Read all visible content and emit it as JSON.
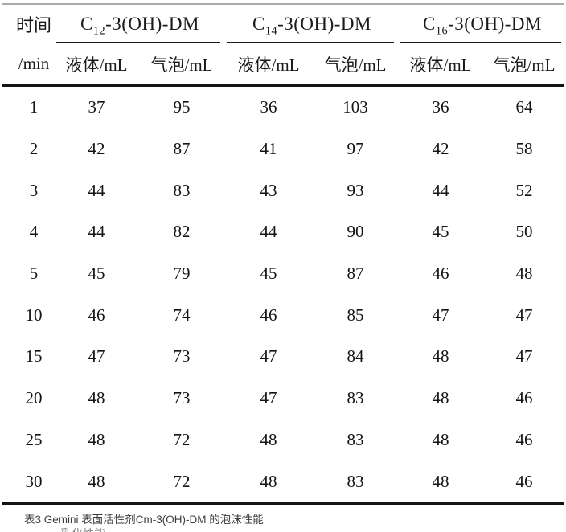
{
  "page": {
    "caption": "表3 Gemini 表面活性剂Cm-3(OH)-DM 的泡沫性能",
    "clipped_next_line": "乳化性能"
  },
  "table": {
    "time_header_line1": "时间",
    "time_header_line2": "/min",
    "groups": [
      {
        "prefix": "C",
        "sub": "12",
        "suffix": "-3(OH)-DM",
        "subcols": [
          "液体/mL",
          "气泡/mL"
        ]
      },
      {
        "prefix": "C",
        "sub": "14",
        "suffix": "-3(OH)-DM",
        "subcols": [
          "液体/mL",
          "气泡/mL"
        ]
      },
      {
        "prefix": "C",
        "sub": "16",
        "suffix": "-3(OH)-DM",
        "subcols": [
          "液体/mL",
          "气泡/mL"
        ]
      }
    ],
    "rows": [
      {
        "time": "1",
        "values": [
          "37",
          "95",
          "36",
          "103",
          "36",
          "64"
        ]
      },
      {
        "time": "2",
        "values": [
          "42",
          "87",
          "41",
          "97",
          "42",
          "58"
        ]
      },
      {
        "time": "3",
        "values": [
          "44",
          "83",
          "43",
          "93",
          "44",
          "52"
        ]
      },
      {
        "time": "4",
        "values": [
          "44",
          "82",
          "44",
          "90",
          "45",
          "50"
        ]
      },
      {
        "time": "5",
        "values": [
          "45",
          "79",
          "45",
          "87",
          "46",
          "48"
        ]
      },
      {
        "time": "10",
        "values": [
          "46",
          "74",
          "46",
          "85",
          "47",
          "47"
        ]
      },
      {
        "time": "15",
        "values": [
          "47",
          "73",
          "47",
          "84",
          "48",
          "47"
        ]
      },
      {
        "time": "20",
        "values": [
          "48",
          "73",
          "47",
          "83",
          "48",
          "46"
        ]
      },
      {
        "time": "25",
        "values": [
          "48",
          "72",
          "48",
          "83",
          "48",
          "46"
        ]
      },
      {
        "time": "30",
        "values": [
          "48",
          "72",
          "48",
          "83",
          "48",
          "46"
        ]
      }
    ]
  },
  "chart_data": {
    "type": "table",
    "title": "表3 Gemini 表面活性剂Cm-3(OH)-DM 的泡沫性能",
    "columns": [
      "时间/min",
      "C12-3(OH)-DM 液体/mL",
      "C12-3(OH)-DM 气泡/mL",
      "C14-3(OH)-DM 液体/mL",
      "C14-3(OH)-DM 气泡/mL",
      "C16-3(OH)-DM 液体/mL",
      "C16-3(OH)-DM 气泡/mL"
    ],
    "rows": [
      [
        1,
        37,
        95,
        36,
        103,
        36,
        64
      ],
      [
        2,
        42,
        87,
        41,
        97,
        42,
        58
      ],
      [
        3,
        44,
        83,
        43,
        93,
        44,
        52
      ],
      [
        4,
        44,
        82,
        44,
        90,
        45,
        50
      ],
      [
        5,
        45,
        79,
        45,
        87,
        46,
        48
      ],
      [
        10,
        46,
        74,
        46,
        85,
        47,
        47
      ],
      [
        15,
        47,
        73,
        47,
        84,
        48,
        47
      ],
      [
        20,
        48,
        73,
        47,
        83,
        48,
        46
      ],
      [
        25,
        48,
        72,
        48,
        83,
        48,
        46
      ],
      [
        30,
        48,
        72,
        48,
        83,
        48,
        46
      ]
    ]
  }
}
